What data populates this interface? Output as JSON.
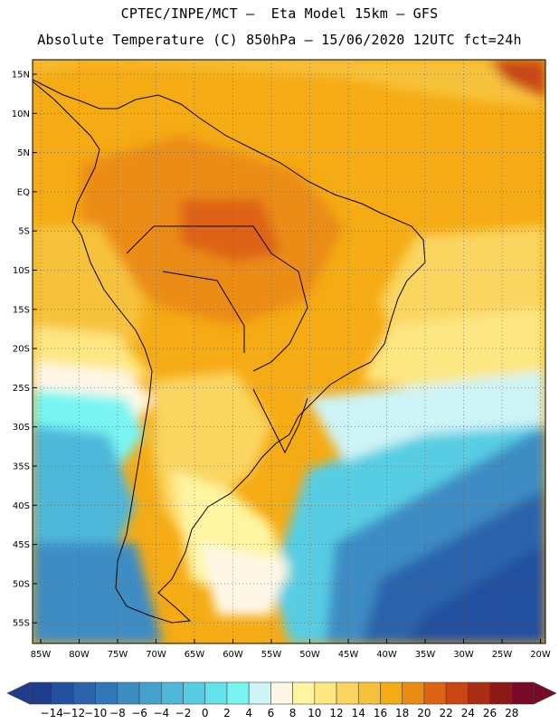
{
  "header": {
    "line1": "CPTEC/INPE/MCT –  Eta Model 15km – GFS",
    "line2": "Absolute Temperature (C) 850hPa – 15/06/2020 12UTC fct=24h"
  },
  "map": {
    "lat_labels": [
      "15N",
      "10N",
      "5N",
      "EQ",
      "5S",
      "10S",
      "15S",
      "20S",
      "25S",
      "30S",
      "35S",
      "40S",
      "45S",
      "50S",
      "55S"
    ],
    "lon_labels": [
      "85W",
      "80W",
      "75W",
      "70W",
      "65W",
      "60W",
      "55W",
      "50W",
      "45W",
      "40W",
      "35W",
      "30W",
      "25W",
      "20W"
    ],
    "gridlines": "dotted"
  },
  "colorbar": {
    "ticks": [
      "-14",
      "-12",
      "-10",
      "-8",
      "-6",
      "-4",
      "-2",
      "0",
      "2",
      "4",
      "6",
      "8",
      "10",
      "12",
      "14",
      "16",
      "18",
      "20",
      "22",
      "24",
      "26",
      "28"
    ],
    "colors": [
      "#1e3c8c",
      "#23509f",
      "#2b63ac",
      "#3177b8",
      "#3c8cc4",
      "#45a2cf",
      "#4db8da",
      "#56cde3",
      "#64e2eb",
      "#78f5f3",
      "#cdf4f7",
      "#fff7e6",
      "#fff5a0",
      "#fde782",
      "#fad560",
      "#f7c23a",
      "#f5ab14",
      "#eb8c14",
      "#de6414",
      "#c84614",
      "#aa2d14",
      "#8c1914",
      "#780a28"
    ]
  }
}
